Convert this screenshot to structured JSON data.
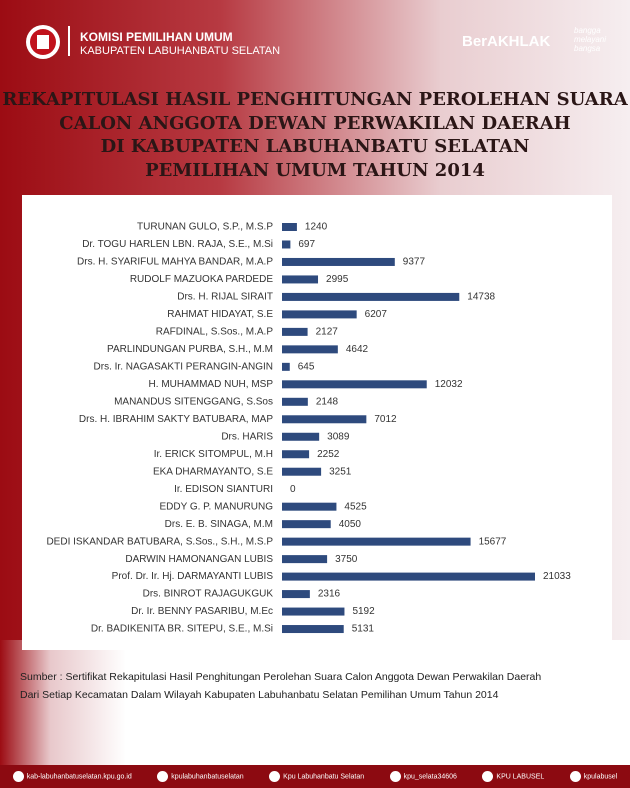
{
  "header": {
    "org": "KOMISI PEMILIHAN UMUM",
    "region": "KABUPATEN  LABUHANBATU SELATAN",
    "slogan": "BerAKHLAK",
    "slogan_sub": [
      "bangga",
      "melayani",
      "bangsa"
    ]
  },
  "chart_data": {
    "type": "bar",
    "orientation": "horizontal",
    "title": [
      "REKAPITULASI HASIL PENGHITUNGAN PEROLEHAN SUARA",
      "CALON ANGGOTA DEWAN PERWAKILAN DAERAH",
      "DI KABUPATEN LABUHANBATU SELATAN",
      "PEMILIHAN UMUM TAHUN 2014"
    ],
    "categories": [
      "TURUNAN GULO, S.P., M.S.P",
      "Dr. TOGU HARLEN LBN. RAJA, S.E., M.Si",
      "Drs. H. SYARIFUL MAHYA BANDAR, M.A.P",
      "RUDOLF MAZUOKA PARDEDE",
      "Drs. H. RIJAL SIRAIT",
      "RAHMAT HIDAYAT, S.E",
      "RAFDINAL, S.Sos., M.A.P",
      "PARLINDUNGAN PURBA, S.H., M.M",
      "Drs. Ir. NAGASAKTI PERANGIN-ANGIN",
      "H. MUHAMMAD NUH, MSP",
      "MANANDUS SITENGGANG, S.Sos",
      "Drs. H. IBRAHIM SAKTY BATUBARA, MAP",
      "Drs. HARIS",
      "Ir. ERICK SITOMPUL, M.H",
      "EKA DHARMAYANTO, S.E",
      "Ir. EDISON SIANTURI",
      "EDDY G. P. MANURUNG",
      "Drs. E. B. SINAGA, M.M",
      "DEDI ISKANDAR BATUBARA, S.Sos., S.H., M.S.P",
      "DARWIN HAMONANGAN LUBIS",
      "Prof. Dr. Ir. Hj. DARMAYANTI LUBIS",
      "Drs. BINROT RAJAGUKGUK",
      "Dr. Ir. BENNY PASARIBU, M.Ec",
      "Dr. BADIKENITA BR. SITEPU, S.E., M.Si"
    ],
    "values": [
      1240,
      697,
      9377,
      2995,
      14738,
      6207,
      2127,
      4642,
      645,
      12032,
      2148,
      7012,
      3089,
      2252,
      3251,
      0,
      4525,
      4050,
      15677,
      3750,
      21033,
      2316,
      5192,
      5131
    ],
    "color": "#2e4a7d"
  },
  "source": [
    "Sumber : Sertifikat Rekapitulasi Hasil Penghitungan Perolehan Suara Calon Anggota Dewan Perwakilan Daerah",
    "Dari Setiap Kecamatan Dalam Wilayah Kabupaten Labuhanbatu Selatan Pemilihan Umum Tahun 2014"
  ],
  "footer": {
    "links": [
      "kab-labuhanbatuselatan.kpu.go.id",
      "kpulabuhanbatuselatan",
      "Kpu Labuhanbatu Selatan",
      "kpu_selata34606",
      "KPU LABUSEL",
      "kpulabusel"
    ]
  }
}
